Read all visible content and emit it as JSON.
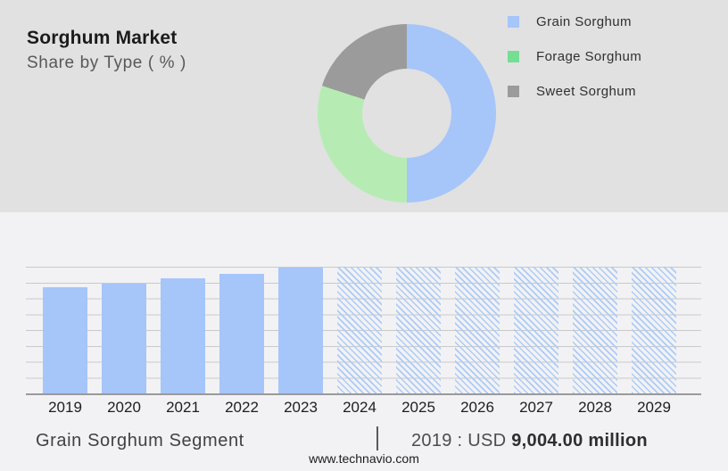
{
  "header": {
    "title": "Sorghum Market",
    "subtitle": "Share by Type ( % )"
  },
  "colors": {
    "top_background": "#e1e1e1",
    "bottom_background": "#f2f2f4",
    "bar_blue": "#a6c5f9",
    "hatch_blue": "#accbf7",
    "donut_green": "#b6ecb4",
    "legend_green": "#74de92",
    "gray_slice": "#9b9b9b",
    "gridline": "#c9c9c9",
    "axis": "#9a9a9a"
  },
  "legend": {
    "items": [
      {
        "label": "Grain Sorghum",
        "color": "#a6c5f9"
      },
      {
        "label": "Forage Sorghum",
        "color": "#74de92"
      },
      {
        "label": "Sweet Sorghum",
        "color": "#9b9b9b"
      }
    ]
  },
  "chart_data": [
    {
      "type": "pie",
      "donut": true,
      "title": "Sorghum Market — Share by Type ( % )",
      "labels": [
        "Grain Sorghum",
        "Forage Sorghum",
        "Sweet Sorghum"
      ],
      "values": [
        50,
        30,
        20
      ],
      "colors": [
        "#a6c5f9",
        "#b6ecb4",
        "#9b9b9b"
      ],
      "legend_position": "right",
      "start_angle_deg": 0,
      "note": "values estimated from arc angles; no numeric labels shown"
    },
    {
      "type": "bar",
      "title": "Grain Sorghum Segment — market size by year",
      "categories": [
        "2019",
        "2020",
        "2021",
        "2022",
        "2023",
        "2024",
        "2025",
        "2026",
        "2027",
        "2028",
        "2029"
      ],
      "values_relative_pct": [
        84,
        86.5,
        91,
        94.5,
        99.3,
        100,
        100,
        100,
        100,
        100,
        100
      ],
      "solid_years": [
        "2019",
        "2020",
        "2021",
        "2022",
        "2023"
      ],
      "hatched_forecast_years": [
        "2024",
        "2025",
        "2026",
        "2027",
        "2028",
        "2029"
      ],
      "known_point": {
        "year": "2019",
        "value": "USD 9,004.00 million"
      },
      "xlabel": "",
      "ylabel": "",
      "y_axis_labeled": false,
      "grid": true,
      "note": "y-axis unlabeled; bar heights are relative estimates from pixels"
    }
  ],
  "footer": {
    "segment": "Grain Sorghum Segment",
    "separator": "|",
    "value_prefix": "2019 : USD ",
    "value_bold": "9,004.00 million",
    "website": "www.technavio.com"
  }
}
